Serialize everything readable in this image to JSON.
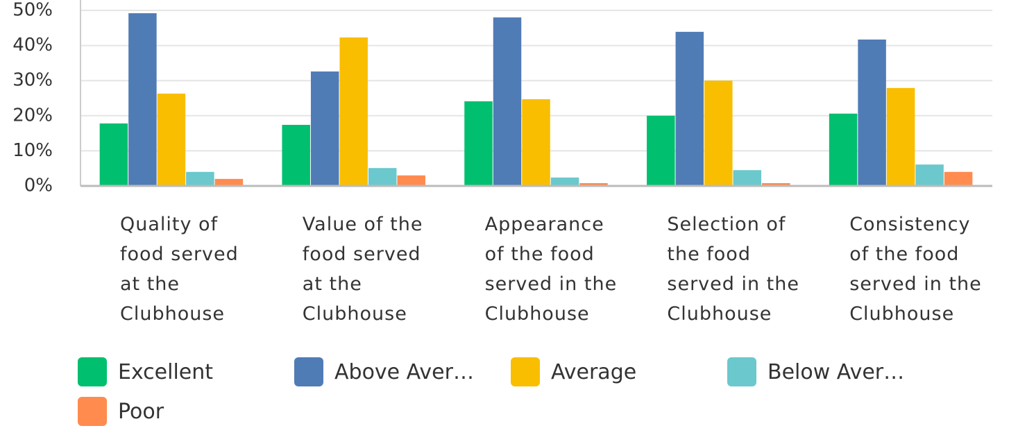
{
  "chart_data": {
    "type": "bar",
    "categories": [
      "Quality of food served at the Clubhouse",
      "Value of the food served at the Clubhouse",
      "Appearance of the food served in the Clubhouse",
      "Selection of the food served in the Clubhouse",
      "Consistency of the food served in the Clubhouse"
    ],
    "series": [
      {
        "name": "Excellent",
        "color": "#00bf6f",
        "values": [
          17.8,
          17.4,
          24.1,
          20.0,
          20.6
        ]
      },
      {
        "name": "Above Aver…",
        "color": "#507cb6",
        "values": [
          49.2,
          32.6,
          48.0,
          43.9,
          41.7
        ]
      },
      {
        "name": "Average",
        "color": "#f9be00",
        "values": [
          26.3,
          42.3,
          24.7,
          30.0,
          27.9
        ]
      },
      {
        "name": "Below Aver…",
        "color": "#6bc8cd",
        "values": [
          4.0,
          5.1,
          2.4,
          4.5,
          6.1
        ]
      },
      {
        "name": "Poor",
        "color": "#ff8b4f",
        "values": [
          2.0,
          3.0,
          0.8,
          0.8,
          4.0
        ]
      }
    ],
    "ylim": [
      0,
      50
    ],
    "yticks": [
      {
        "value": 0,
        "label": "0%"
      },
      {
        "value": 10,
        "label": "10%"
      },
      {
        "value": 20,
        "label": "20%"
      },
      {
        "value": 30,
        "label": "30%"
      },
      {
        "value": 40,
        "label": "40%"
      },
      {
        "value": 50,
        "label": "50%"
      }
    ],
    "grid": true
  }
}
